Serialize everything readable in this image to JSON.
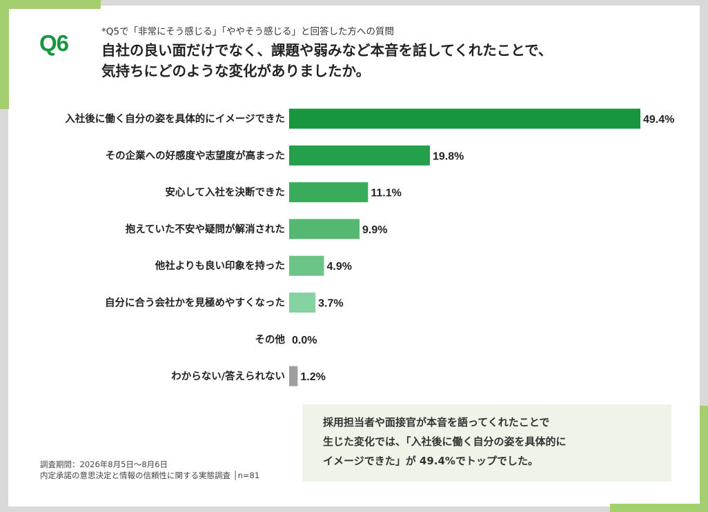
{
  "header": {
    "question_number": "Q6",
    "subquestion": "*Q5で「非常にそう感じる」「ややそう感じる」と回答した方への質問",
    "title_line1": "自社の良い面だけでなく、課題や弱みなど本音を話してくれたことで、",
    "title_line2": "気持ちにどのような変化がありましたか。"
  },
  "chart_data": {
    "type": "bar",
    "orientation": "horizontal",
    "categories": [
      "入社後に働く自分の姿を具体的にイメージできた",
      "その企業への好感度や志望度が高まった",
      "安心して入社を決断できた",
      "抱えていた不安や疑問が解消された",
      "他社よりも良い印象を持った",
      "自分に合う会社かを見極めやすくなった",
      "その他",
      "わからない/答えられない"
    ],
    "values": [
      49.4,
      19.8,
      11.1,
      9.9,
      4.9,
      3.7,
      0.0,
      1.2
    ],
    "value_labels": [
      "49.4%",
      "19.8%",
      "11.1%",
      "9.9%",
      "4.9%",
      "3.7%",
      "0.0%",
      "1.2%"
    ],
    "bar_colors": [
      "#18963e",
      "#24a04b",
      "#39ab5a",
      "#55b872",
      "#6cc586",
      "#86d3a2",
      "#97d9ae",
      "#9e9e9e"
    ],
    "xlim": [
      0,
      50
    ],
    "grid": false,
    "legend": "none"
  },
  "footer": {
    "survey_period": "調査期間：2026年8月5日～8月6日",
    "survey_name": "内定承諾の意思決定と情報の信頼性に関する実態調査",
    "sample": "│n=81"
  },
  "summary": {
    "line1": "採用担当者や面接官が本音を語ってくれたことで",
    "line2": "生じた変化では、「入社後に働く自分の姿を具体的に",
    "line3": "イメージできた」が 49.4%でトップでした。"
  },
  "colors": {
    "accent_green": "#a3cf6e",
    "brand_green": "#17963f",
    "summary_bg": "#eef4e8"
  }
}
